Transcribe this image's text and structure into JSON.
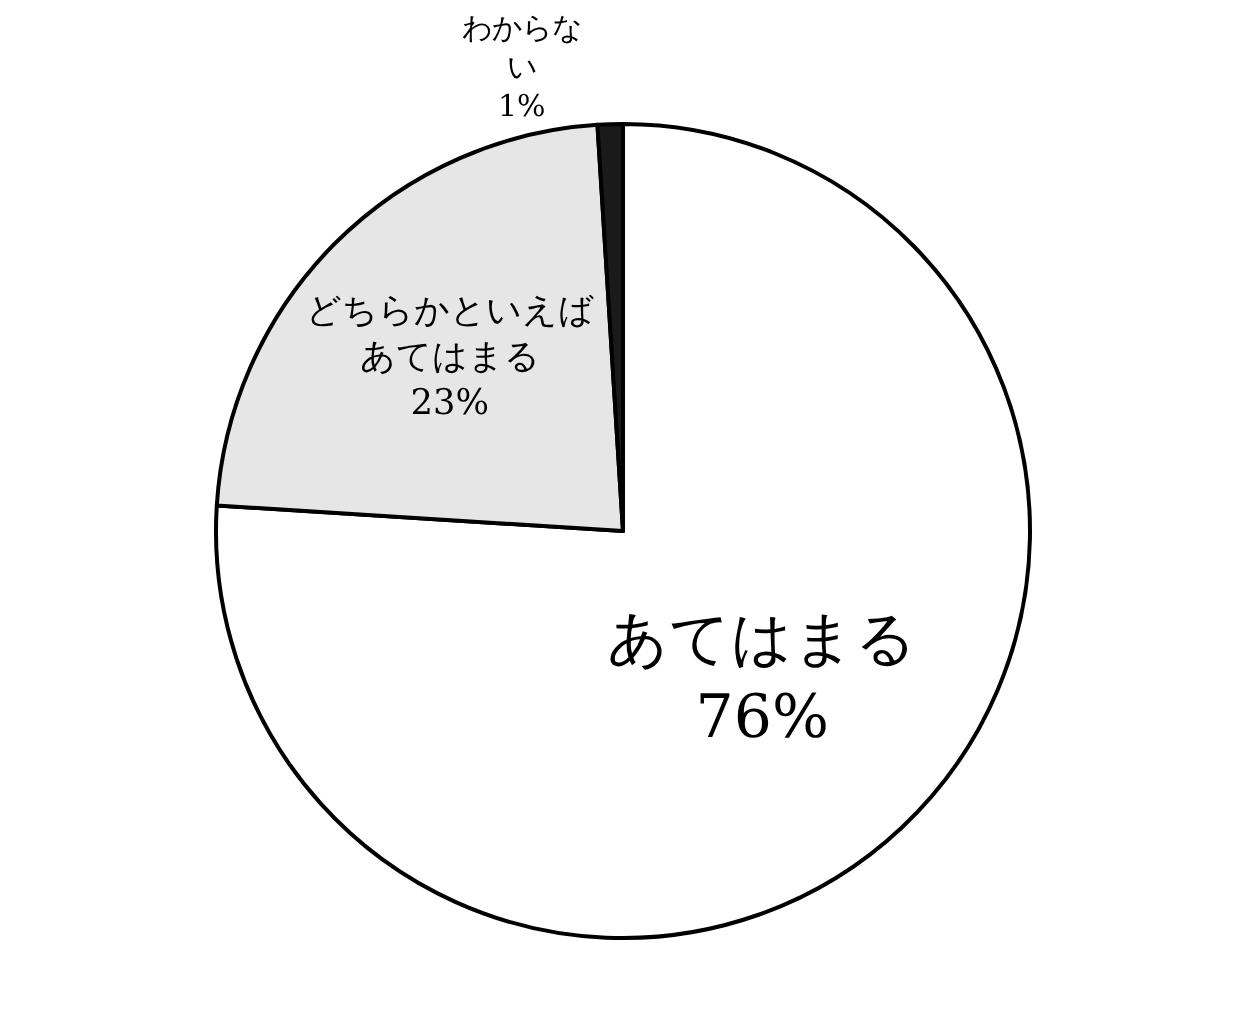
{
  "chart_data": {
    "type": "pie",
    "categories": [
      "あてはまる",
      "どちらかといえばあてはまる",
      "わからない"
    ],
    "values": [
      76,
      23,
      1
    ],
    "value_labels": [
      "76%",
      "23%",
      "1%"
    ],
    "colors": [
      "#ffffff",
      "#e6e6e6",
      "#1a1a1a"
    ],
    "legend": false
  }
}
